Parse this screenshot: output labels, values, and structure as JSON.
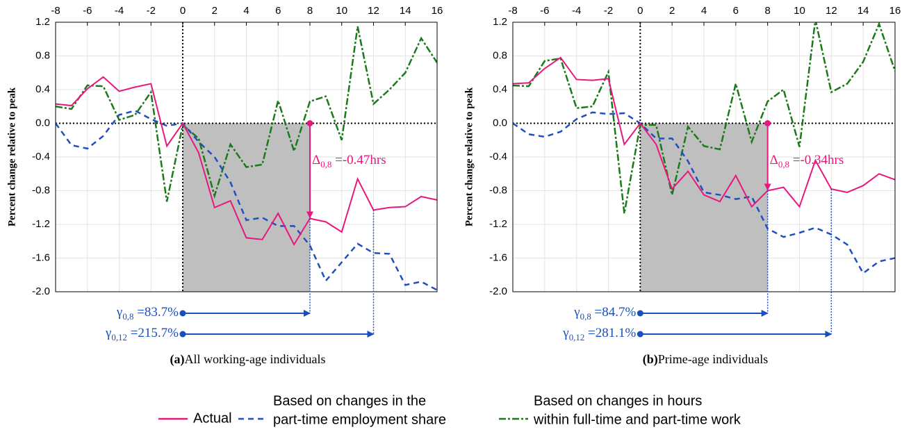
{
  "chart_data": [
    {
      "type": "line",
      "caption": {
        "tag": "(a)",
        "text": "All working-age individuals"
      },
      "ylabel": "Percent change relative to peak",
      "x": [
        -8,
        -7,
        -6,
        -5,
        -4,
        -3,
        -2,
        -1,
        0,
        1,
        2,
        3,
        4,
        5,
        6,
        7,
        8,
        9,
        10,
        11,
        12,
        13,
        14,
        15,
        16
      ],
      "xlim": [
        -8,
        16
      ],
      "xticks": [
        -8,
        -6,
        -4,
        -2,
        0,
        2,
        4,
        6,
        8,
        10,
        12,
        14,
        16
      ],
      "ylim": [
        -2,
        1.2
      ],
      "yticks": [
        {
          "value": -2,
          "label": "-2.0"
        },
        -1.6,
        -1.2,
        -0.8,
        -0.4,
        {
          "value": 0,
          "label": "0.0"
        },
        0.4,
        0.8,
        1.2
      ],
      "grid": true,
      "reference_lines": {
        "x": 0,
        "y": 0
      },
      "shade": {
        "x": [
          0,
          8
        ],
        "color": "#bfbfbf"
      },
      "series": [
        {
          "color": "#e8177d",
          "style": "solid",
          "values": [
            0.23,
            0.21,
            0.41,
            0.55,
            0.38,
            0.43,
            0.47,
            -0.27,
            0.0,
            -0.35,
            -1.0,
            -0.92,
            -1.36,
            -1.38,
            -1.07,
            -1.44,
            -1.13,
            -1.17,
            -1.29,
            -0.66,
            -1.03,
            -1.0,
            -0.99,
            -0.87,
            -0.91
          ]
        },
        {
          "color": "#1f4fc0",
          "style": "dashed",
          "values": [
            0.0,
            -0.26,
            -0.3,
            -0.15,
            0.1,
            0.15,
            0.05,
            -0.03,
            0.0,
            -0.22,
            -0.4,
            -0.7,
            -1.15,
            -1.12,
            -1.22,
            -1.22,
            -1.45,
            -1.87,
            -1.65,
            -1.43,
            -1.54,
            -1.55,
            -1.92,
            -1.88,
            -1.98
          ]
        },
        {
          "color": "#1a7a1a",
          "style": "dashdot",
          "values": [
            0.2,
            0.17,
            0.45,
            0.44,
            0.04,
            0.1,
            0.37,
            -0.93,
            -0.02,
            -0.18,
            -0.86,
            -0.25,
            -0.52,
            -0.49,
            0.27,
            -0.33,
            0.26,
            0.32,
            -0.2,
            1.15,
            0.23,
            0.4,
            0.6,
            1.01,
            0.72
          ]
        }
      ],
      "delta": {
        "x": 8,
        "symbol": "Δ",
        "subscript": "0,8",
        "text": " =-0.47hrs",
        "color": "#e8177d"
      },
      "gammas": [
        {
          "x": [
            0,
            8
          ],
          "symbol": "γ",
          "subscript": "0,8",
          "text": " =83.7%"
        },
        {
          "x": [
            0,
            12
          ],
          "symbol": "γ",
          "subscript": "0,12",
          "text": " =215.7%"
        }
      ],
      "gamma_color": "#1a4fbf"
    },
    {
      "type": "line",
      "caption": {
        "tag": "(b)",
        "text": "Prime-age individuals"
      },
      "ylabel": "Percent change relative to peak",
      "x": [
        -8,
        -7,
        -6,
        -5,
        -4,
        -3,
        -2,
        -1,
        0,
        1,
        2,
        3,
        4,
        5,
        6,
        7,
        8,
        9,
        10,
        11,
        12,
        13,
        14,
        15,
        16
      ],
      "xlim": [
        -8,
        16
      ],
      "xticks": [
        -8,
        -6,
        -4,
        -2,
        0,
        2,
        4,
        6,
        8,
        10,
        12,
        14,
        16
      ],
      "ylim": [
        -2,
        1.2
      ],
      "yticks": [
        {
          "value": -2,
          "label": "-2.0"
        },
        -1.6,
        -1.2,
        -0.8,
        -0.4,
        {
          "value": 0,
          "label": "0.0"
        },
        0.4,
        0.8,
        1.2
      ],
      "grid": true,
      "reference_lines": {
        "x": 0,
        "y": 0
      },
      "shade": {
        "x": [
          0,
          8
        ],
        "color": "#bfbfbf"
      },
      "series": [
        {
          "name": [
            "Actual"
          ],
          "color": "#e8177d",
          "style": "solid",
          "values": [
            0.47,
            0.48,
            0.65,
            0.78,
            0.52,
            0.51,
            0.53,
            -0.25,
            0.0,
            -0.25,
            -0.78,
            -0.57,
            -0.85,
            -0.93,
            -0.62,
            -0.99,
            -0.8,
            -0.76,
            -0.99,
            -0.44,
            -0.78,
            -0.82,
            -0.74,
            -0.6,
            -0.67
          ]
        },
        {
          "name": [
            "Based on changes in the",
            "part-time employment share"
          ],
          "color": "#1f4fc0",
          "style": "dashed",
          "values": [
            0.0,
            -0.13,
            -0.16,
            -0.1,
            0.05,
            0.13,
            0.11,
            0.12,
            0.0,
            -0.18,
            -0.18,
            -0.45,
            -0.82,
            -0.85,
            -0.9,
            -0.87,
            -1.25,
            -1.35,
            -1.3,
            -1.24,
            -1.32,
            -1.44,
            -1.78,
            -1.64,
            -1.6
          ]
        },
        {
          "name": [
            "Based on changes in hours",
            "within full-time and part-time work"
          ],
          "color": "#1a7a1a",
          "style": "dashdot",
          "values": [
            0.45,
            0.44,
            0.74,
            0.77,
            0.18,
            0.2,
            0.61,
            -1.07,
            -0.02,
            -0.02,
            -0.85,
            -0.04,
            -0.27,
            -0.31,
            0.47,
            -0.22,
            0.26,
            0.4,
            -0.28,
            1.23,
            0.37,
            0.47,
            0.73,
            1.18,
            0.62
          ]
        }
      ],
      "delta": {
        "x": 8,
        "symbol": "Δ",
        "subscript": "0,8",
        "text": " =-0.34hrs",
        "color": "#e8177d"
      },
      "gammas": [
        {
          "x": [
            0,
            8
          ],
          "symbol": "γ",
          "subscript": "0,8",
          "text": " =84.7%"
        },
        {
          "x": [
            0,
            12
          ],
          "symbol": "γ",
          "subscript": "0,12",
          "text": " =281.1%"
        }
      ],
      "gamma_color": "#1a4fbf"
    }
  ]
}
